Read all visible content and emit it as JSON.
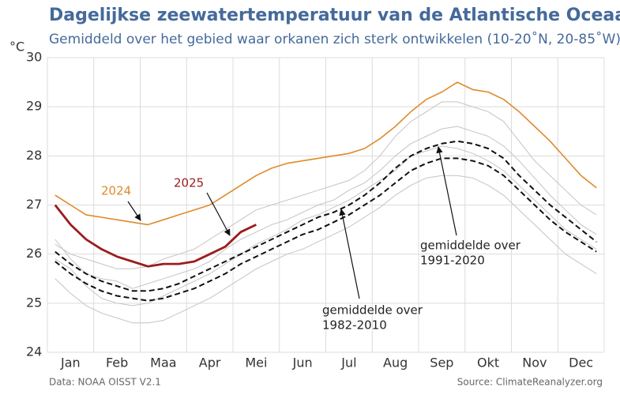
{
  "chart_data": {
    "type": "line",
    "title": "Dagelijkse zeewatertemperatuur van de Atlantische Oceaan",
    "subtitle": "Gemiddeld over het gebied waar orkanen zich sterk ontwikkelen (10-20˚N, 20-85˚W)",
    "y_unit": "°C",
    "source_left": "Data: NOAA OISST V2.1",
    "source_right": "Source: ClimateReanalyzer.org",
    "categories": [
      null,
      "Jan",
      null,
      null,
      "Feb",
      null,
      null,
      "Maa",
      null,
      null,
      "Apr",
      null,
      null,
      "Mei",
      null,
      null,
      "Jun",
      null,
      null,
      "Jul",
      null,
      null,
      "Aug",
      null,
      null,
      "Sep",
      null,
      null,
      "Okt",
      null,
      null,
      "Nov",
      null,
      null,
      "Dec",
      null
    ],
    "ylim": [
      24,
      30
    ],
    "yticks": [
      24,
      25,
      26,
      27,
      28,
      29,
      30
    ],
    "grid": true,
    "series": [
      {
        "color": "#c4c4c4",
        "values": [
          26.2,
          26.0,
          25.9,
          25.8,
          25.7,
          25.7,
          25.75,
          25.9,
          26.0,
          26.1,
          26.3,
          26.5,
          26.7,
          26.9,
          27.0,
          27.1,
          27.2,
          27.3,
          27.4,
          27.5,
          27.7,
          28.0,
          28.4,
          28.7,
          28.9,
          29.1,
          29.1,
          29.0,
          28.9,
          28.7,
          28.3,
          27.9,
          27.6,
          27.3,
          27.0,
          26.8
        ]
      },
      {
        "color": "#c4c4c4",
        "values": [
          25.5,
          25.2,
          24.95,
          24.8,
          24.7,
          24.6,
          24.6,
          24.65,
          24.8,
          24.95,
          25.1,
          25.3,
          25.5,
          25.7,
          25.85,
          26.0,
          26.1,
          26.25,
          26.4,
          26.55,
          26.75,
          26.95,
          27.2,
          27.4,
          27.55,
          27.6,
          27.6,
          27.55,
          27.4,
          27.2,
          26.9,
          26.6,
          26.3,
          26.0,
          25.8,
          25.6
        ]
      },
      {
        "color": "#c4c4c4",
        "values": [
          26.3,
          25.9,
          25.6,
          25.5,
          25.45,
          25.3,
          25.4,
          25.5,
          25.6,
          25.7,
          25.85,
          26.1,
          26.3,
          26.45,
          26.6,
          26.7,
          26.85,
          27.0,
          27.1,
          27.3,
          27.45,
          27.7,
          28.0,
          28.25,
          28.4,
          28.55,
          28.6,
          28.5,
          28.4,
          28.2,
          27.9,
          27.55,
          27.2,
          26.9,
          26.6,
          26.4
        ]
      },
      {
        "color": "#c4c4c4",
        "values": [
          25.9,
          25.7,
          25.35,
          25.1,
          25.0,
          24.95,
          25.0,
          25.15,
          25.3,
          25.45,
          25.6,
          25.8,
          26.0,
          26.2,
          26.35,
          26.5,
          26.7,
          26.8,
          26.95,
          27.1,
          27.3,
          27.5,
          27.7,
          28.0,
          28.1,
          28.2,
          28.15,
          28.05,
          27.9,
          27.7,
          27.4,
          27.1,
          26.8,
          26.5,
          26.3,
          26.1
        ]
      },
      {
        "name": [
          "gemiddelde over",
          "1982-2010"
        ],
        "color": "#111111",
        "dash": true,
        "values": [
          25.85,
          25.6,
          25.4,
          25.25,
          25.15,
          25.1,
          25.05,
          25.1,
          25.2,
          25.3,
          25.45,
          25.6,
          25.8,
          25.95,
          26.1,
          26.25,
          26.4,
          26.5,
          26.65,
          26.8,
          27.0,
          27.2,
          27.45,
          27.7,
          27.85,
          27.95,
          27.95,
          27.9,
          27.8,
          27.6,
          27.3,
          27.0,
          26.7,
          26.45,
          26.25,
          26.05
        ]
      },
      {
        "name": [
          "gemiddelde over",
          "1991-2020"
        ],
        "color": "#111111",
        "dash": true,
        "values": [
          26.05,
          25.8,
          25.6,
          25.45,
          25.35,
          25.25,
          25.25,
          25.3,
          25.4,
          25.55,
          25.7,
          25.85,
          26.0,
          26.15,
          26.3,
          26.45,
          26.6,
          26.75,
          26.85,
          27.0,
          27.2,
          27.45,
          27.75,
          28.0,
          28.15,
          28.25,
          28.3,
          28.25,
          28.15,
          27.95,
          27.6,
          27.3,
          27.0,
          26.75,
          26.5,
          26.25
        ]
      },
      {
        "name": [
          "2024"
        ],
        "color": "#e08a2b",
        "values": [
          27.2,
          27.0,
          26.8,
          26.75,
          26.7,
          26.65,
          26.6,
          26.7,
          26.8,
          26.9,
          27.0,
          27.2,
          27.4,
          27.6,
          27.75,
          27.85,
          27.9,
          27.95,
          28.0,
          28.05,
          28.15,
          28.35,
          28.6,
          28.9,
          29.15,
          29.3,
          29.5,
          29.35,
          29.3,
          29.15,
          28.9,
          28.6,
          28.3,
          27.95,
          27.6,
          27.35
        ]
      },
      {
        "name": [
          "2025"
        ],
        "color": "#9b1c1c",
        "values": [
          27.0,
          26.6,
          26.3,
          26.1,
          25.95,
          25.85,
          25.75,
          25.8,
          25.8,
          25.85,
          26.0,
          26.15,
          26.45,
          26.6,
          null,
          null,
          null,
          null,
          null,
          null,
          null,
          null,
          null,
          null,
          null,
          null,
          null,
          null,
          null,
          null,
          null,
          null,
          null,
          null,
          null,
          null
        ]
      }
    ]
  }
}
